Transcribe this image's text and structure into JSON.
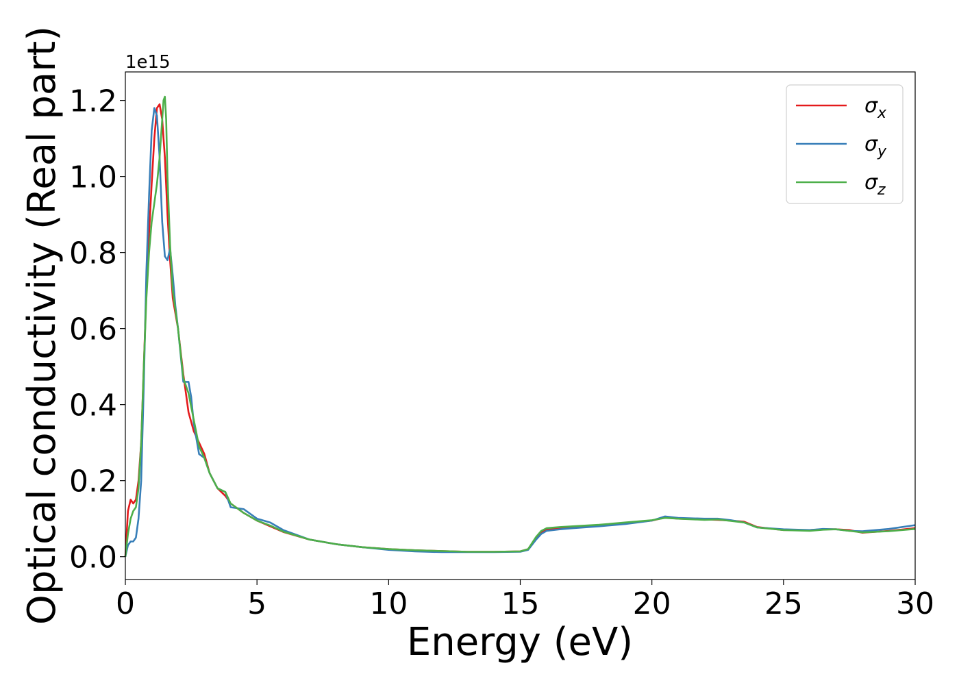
{
  "chart_data": {
    "type": "line",
    "title": "",
    "xlabel": "Energy (eV)",
    "ylabel": "Optical conductivity (Real part)",
    "offset_label": "1e15",
    "xlim": [
      0,
      30
    ],
    "ylim": [
      -0.06,
      1.275
    ],
    "x_ticks": [
      0,
      5,
      10,
      15,
      20,
      25,
      30
    ],
    "x_tick_labels": [
      "0",
      "5",
      "10",
      "15",
      "20",
      "25",
      "30"
    ],
    "y_ticks": [
      0.0,
      0.2,
      0.4,
      0.6,
      0.8,
      1.0,
      1.2
    ],
    "y_tick_labels": [
      "0.0",
      "0.2",
      "0.4",
      "0.6",
      "0.8",
      "1.0",
      "1.2"
    ],
    "grid": false,
    "legend_position": "top-right",
    "y_unit_multiplier": "1e15",
    "series": [
      {
        "name": "σx",
        "sub": "x",
        "color": "#e41a1c",
        "x": [
          0,
          0.1,
          0.2,
          0.3,
          0.4,
          0.5,
          0.6,
          0.7,
          0.8,
          0.9,
          1.0,
          1.1,
          1.2,
          1.3,
          1.4,
          1.5,
          1.6,
          1.7,
          1.8,
          2.0,
          2.2,
          2.4,
          2.6,
          2.8,
          3.0,
          3.2,
          3.5,
          3.8,
          4.0,
          4.5,
          5.0,
          5.5,
          6.0,
          7.0,
          8.0,
          9.0,
          10.0,
          11.0,
          12.0,
          13.0,
          14.0,
          15.0,
          15.3,
          15.6,
          15.8,
          16.0,
          16.5,
          17.0,
          18.0,
          19.0,
          20.0,
          20.5,
          21.0,
          22.0,
          22.5,
          23.0,
          23.5,
          24.0,
          25.0,
          26.0,
          26.5,
          27.0,
          27.5,
          28.0,
          29.0,
          30.0
        ],
        "values": [
          0.0,
          0.12,
          0.15,
          0.14,
          0.15,
          0.2,
          0.3,
          0.5,
          0.7,
          0.85,
          0.98,
          1.1,
          1.18,
          1.19,
          1.15,
          1.05,
          0.9,
          0.78,
          0.68,
          0.6,
          0.48,
          0.38,
          0.33,
          0.3,
          0.27,
          0.22,
          0.18,
          0.16,
          0.14,
          0.115,
          0.095,
          0.08,
          0.065,
          0.045,
          0.033,
          0.025,
          0.02,
          0.017,
          0.015,
          0.013,
          0.013,
          0.014,
          0.02,
          0.05,
          0.065,
          0.072,
          0.076,
          0.078,
          0.082,
          0.088,
          0.095,
          0.103,
          0.1,
          0.098,
          0.097,
          0.095,
          0.092,
          0.078,
          0.07,
          0.07,
          0.072,
          0.072,
          0.07,
          0.063,
          0.068,
          0.075
        ]
      },
      {
        "name": "σy",
        "sub": "y",
        "color": "#377eb8",
        "x": [
          0,
          0.1,
          0.2,
          0.3,
          0.4,
          0.5,
          0.6,
          0.7,
          0.8,
          0.9,
          1.0,
          1.1,
          1.2,
          1.3,
          1.4,
          1.5,
          1.6,
          1.7,
          1.8,
          1.9,
          2.0,
          2.2,
          2.4,
          2.5,
          2.6,
          2.8,
          3.0,
          3.2,
          3.5,
          3.8,
          4.0,
          4.5,
          5.0,
          5.5,
          6.0,
          7.0,
          8.0,
          9.0,
          10.0,
          11.0,
          12.0,
          13.0,
          14.0,
          15.0,
          15.3,
          15.6,
          15.8,
          16.0,
          16.5,
          17.0,
          18.0,
          19.0,
          20.0,
          20.5,
          21.0,
          22.0,
          22.5,
          23.0,
          23.5,
          24.0,
          25.0,
          26.0,
          26.5,
          27.0,
          27.5,
          28.0,
          29.0,
          30.0
        ],
        "values": [
          0.0,
          0.03,
          0.04,
          0.04,
          0.05,
          0.1,
          0.2,
          0.45,
          0.75,
          0.95,
          1.12,
          1.18,
          1.16,
          1.05,
          0.88,
          0.79,
          0.78,
          0.81,
          0.74,
          0.66,
          0.6,
          0.46,
          0.46,
          0.42,
          0.35,
          0.27,
          0.26,
          0.22,
          0.18,
          0.17,
          0.13,
          0.125,
          0.1,
          0.09,
          0.07,
          0.045,
          0.033,
          0.025,
          0.018,
          0.014,
          0.012,
          0.012,
          0.012,
          0.013,
          0.018,
          0.045,
          0.06,
          0.068,
          0.072,
          0.075,
          0.08,
          0.086,
          0.095,
          0.106,
          0.102,
          0.1,
          0.1,
          0.096,
          0.09,
          0.077,
          0.072,
          0.07,
          0.073,
          0.072,
          0.068,
          0.067,
          0.073,
          0.083
        ]
      },
      {
        "name": "σz",
        "sub": "z",
        "color": "#4daf4a",
        "x": [
          0,
          0.1,
          0.2,
          0.3,
          0.4,
          0.5,
          0.6,
          0.7,
          0.8,
          0.9,
          1.0,
          1.1,
          1.2,
          1.3,
          1.4,
          1.45,
          1.5,
          1.55,
          1.6,
          1.7,
          1.8,
          2.0,
          2.2,
          2.4,
          2.6,
          2.8,
          3.0,
          3.2,
          3.5,
          3.8,
          4.0,
          4.5,
          5.0,
          5.5,
          6.0,
          7.0,
          8.0,
          9.0,
          10.0,
          11.0,
          12.0,
          13.0,
          14.0,
          15.0,
          15.3,
          15.6,
          15.8,
          16.0,
          16.5,
          17.0,
          18.0,
          19.0,
          20.0,
          20.5,
          21.0,
          22.0,
          22.5,
          23.0,
          23.5,
          24.0,
          25.0,
          26.0,
          26.5,
          27.0,
          27.5,
          28.0,
          29.0,
          30.0
        ],
        "values": [
          0.0,
          0.06,
          0.1,
          0.12,
          0.13,
          0.18,
          0.3,
          0.5,
          0.68,
          0.8,
          0.88,
          0.93,
          0.98,
          1.05,
          1.15,
          1.2,
          1.21,
          1.15,
          1.0,
          0.82,
          0.7,
          0.6,
          0.47,
          0.43,
          0.36,
          0.29,
          0.26,
          0.22,
          0.18,
          0.17,
          0.14,
          0.115,
          0.095,
          0.082,
          0.066,
          0.045,
          0.033,
          0.025,
          0.02,
          0.017,
          0.015,
          0.013,
          0.013,
          0.014,
          0.02,
          0.052,
          0.068,
          0.075,
          0.078,
          0.08,
          0.084,
          0.09,
          0.096,
          0.102,
          0.1,
          0.097,
          0.098,
          0.094,
          0.09,
          0.077,
          0.07,
          0.068,
          0.071,
          0.072,
          0.068,
          0.064,
          0.067,
          0.073
        ]
      }
    ]
  }
}
